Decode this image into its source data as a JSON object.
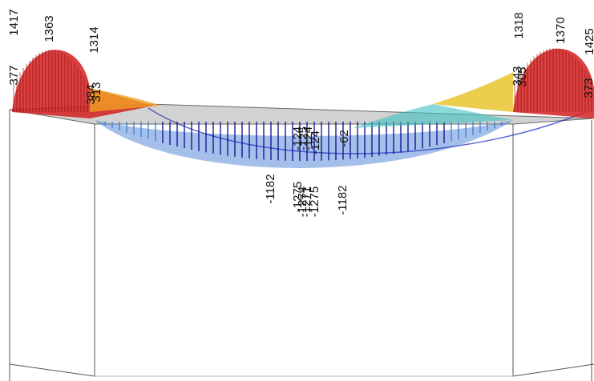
{
  "labels": [
    "1417",
    "1363",
    "377",
    "1314",
    "384",
    "313",
    "1318",
    "1370",
    "1425",
    "343",
    "305",
    "373",
    "-1182",
    "-1275",
    "-1274",
    "-1271",
    "-1275",
    "-1182",
    "-124",
    "-125",
    "-124",
    "-124",
    "-62"
  ]
}
